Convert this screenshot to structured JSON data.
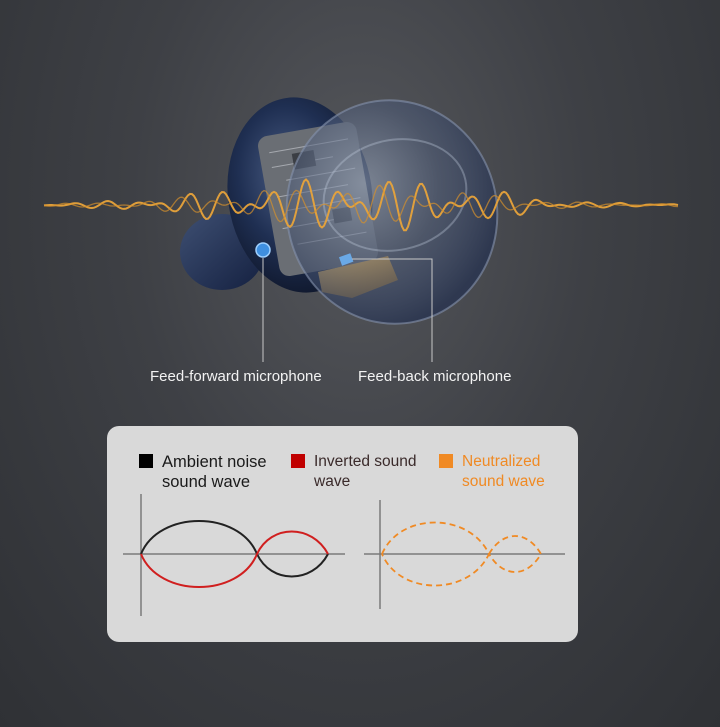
{
  "callouts": {
    "feed_forward": "Feed-forward microphone",
    "feed_back": "Feed-back microphone"
  },
  "legend": {
    "items": [
      {
        "label": "Ambient noise\nsound wave",
        "color": "#000000"
      },
      {
        "label": "Inverted sound\nwave",
        "color": "#c00000"
      },
      {
        "label": "Neutralized\nsound wave",
        "color": "#f08a24"
      }
    ]
  },
  "colors": {
    "wave_gold": "#e8a33a",
    "earbud_shell": "#1b2b4a",
    "callout_line": "#c8c8c8",
    "panel_bg": "#d9d9d9"
  },
  "icons": [
    "earbud-illustration",
    "sound-wave"
  ]
}
